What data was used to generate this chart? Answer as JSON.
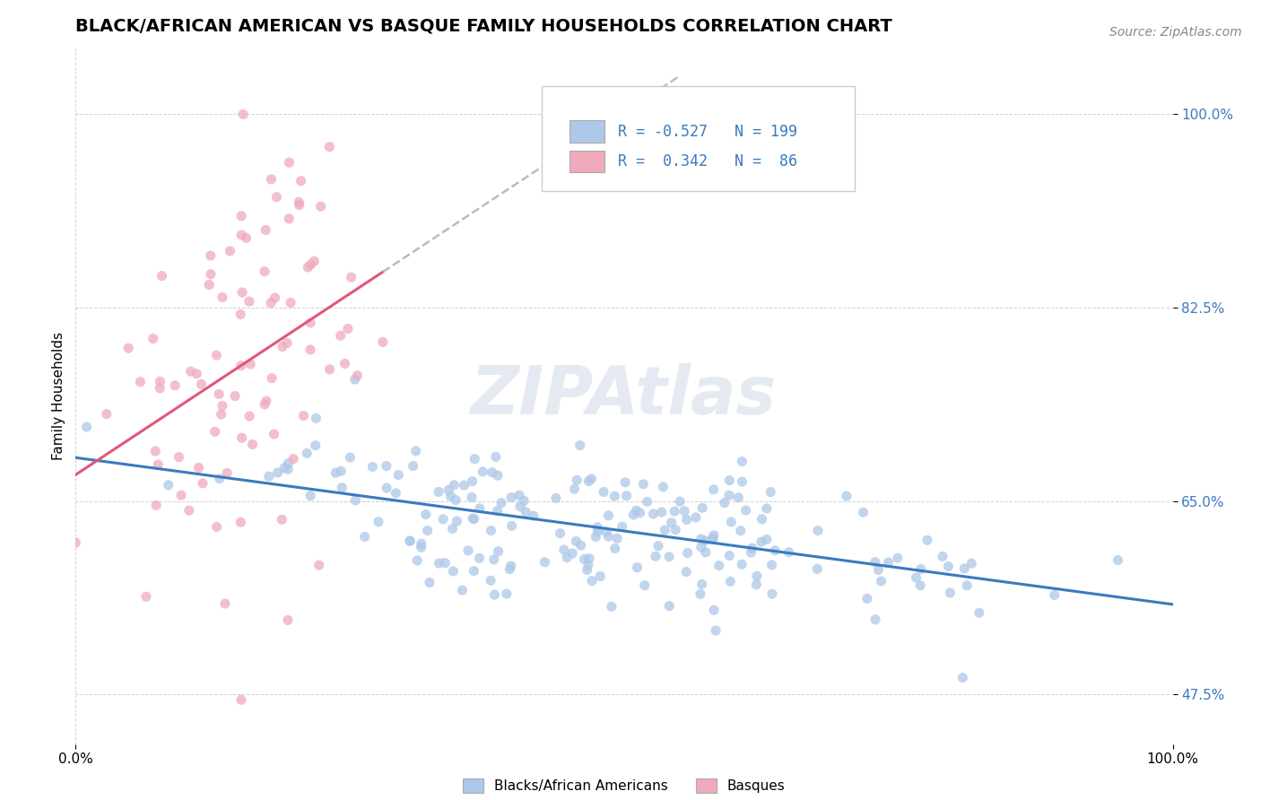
{
  "title": "BLACK/AFRICAN AMERICAN VS BASQUE FAMILY HOUSEHOLDS CORRELATION CHART",
  "source": "Source: ZipAtlas.com",
  "ylabel": "Family Households",
  "watermark": "ZIPAtlas",
  "xlim": [
    0.0,
    1.0
  ],
  "ylim": [
    0.43,
    1.06
  ],
  "yticks": [
    0.475,
    0.65,
    0.825,
    1.0
  ],
  "ytick_labels": [
    "47.5%",
    "65.0%",
    "82.5%",
    "100.0%"
  ],
  "xtick_labels": [
    "0.0%",
    "100.0%"
  ],
  "xticks": [
    0.0,
    1.0
  ],
  "blue_R": -0.527,
  "blue_N": 199,
  "pink_R": 0.342,
  "pink_N": 86,
  "blue_color": "#adc8e8",
  "pink_color": "#f0aabb",
  "blue_scatter_edge": "#adc8e8",
  "pink_scatter_edge": "#f0aabb",
  "blue_line_color": "#3a7abf",
  "pink_line_color": "#e05878",
  "legend_label_blue": "Blacks/African Americans",
  "legend_label_pink": "Basques",
  "title_fontsize": 14,
  "label_fontsize": 11,
  "tick_fontsize": 11,
  "source_fontsize": 10
}
